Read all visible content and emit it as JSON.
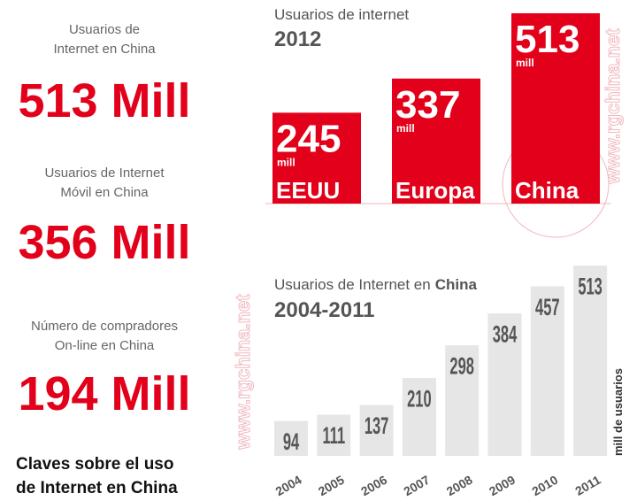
{
  "stats": [
    {
      "label": [
        "Usuarios de",
        "Internet en China"
      ],
      "value": "513 Mill"
    },
    {
      "label": [
        "Usuarios de Internet",
        "Móvil en China"
      ],
      "value": "356 Mill"
    },
    {
      "label": [
        "Número de compradores",
        "On-line en China"
      ],
      "value": "194 Mill"
    }
  ],
  "footer": [
    "Claves sobre el uso",
    "de Internet en China"
  ],
  "watermark": "www.rgchina.net",
  "chart_data": [
    {
      "type": "bar",
      "title": "Usuarios de internet",
      "subtitle": "2012",
      "categories": [
        "EEUU",
        "Europa",
        "China"
      ],
      "values": [
        245,
        337,
        513
      ],
      "value_unit": "mill",
      "color": "#e2001a"
    },
    {
      "type": "bar",
      "title": "Usuarios de Internet en",
      "title_bold": "China",
      "subtitle": "2004-2011",
      "categories": [
        "2004",
        "2005",
        "2006",
        "2007",
        "2008",
        "2009",
        "2010",
        "2011"
      ],
      "values": [
        94,
        111,
        137,
        210,
        298,
        384,
        457,
        513
      ],
      "y_label": "mill de usuarios",
      "color": "#e6e6e6"
    }
  ]
}
